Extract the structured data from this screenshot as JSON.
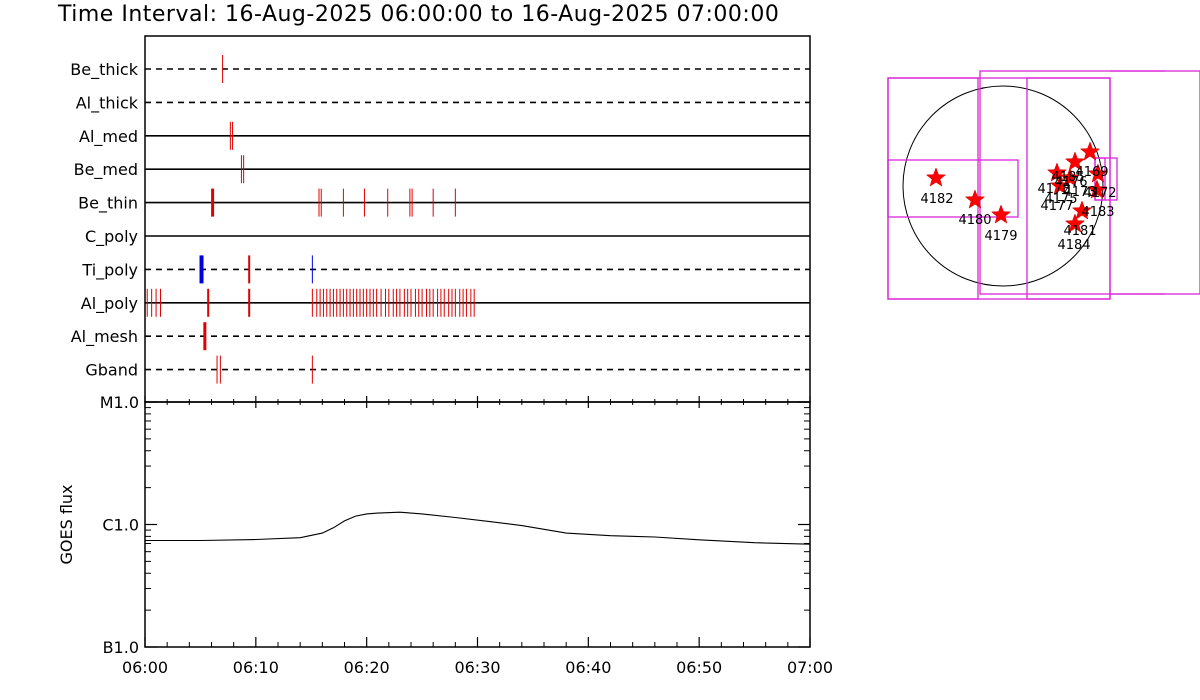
{
  "header": {
    "title": "Time Interval: 16-Aug-2025 06:00:00 to 16-Aug-2025 07:00:00"
  },
  "colors": {
    "event_red": "#e00000",
    "event_blue": "#0000dd",
    "fov_magenta": "#d926d9",
    "star_red": "#ff0000"
  },
  "chart_data": [
    {
      "type": "timeline",
      "x_range": [
        "06:00",
        "07:00"
      ],
      "x_unit": "minutes after 06:00",
      "rows": [
        {
          "name": "Be_thick",
          "style": "dashed",
          "events": [
            {
              "t": [
                7.0
              ],
              "color": "red",
              "w": 1
            }
          ]
        },
        {
          "name": "Al_thick",
          "style": "dashed",
          "events": []
        },
        {
          "name": "Al_med",
          "style": "solid",
          "events": [
            {
              "t": [
                7.7,
                7.9
              ],
              "color": "red",
              "w": 1
            }
          ]
        },
        {
          "name": "Be_med",
          "style": "solid",
          "events": [
            {
              "t": [
                8.7,
                8.9
              ],
              "color": "red",
              "w": 1
            }
          ]
        },
        {
          "name": "Be_thin",
          "style": "solid",
          "events": [
            {
              "t": [
                6.1
              ],
              "color": "red",
              "w": 3
            },
            {
              "t": [
                15.7,
                15.9,
                17.9,
                19.8,
                21.9,
                23.9,
                24.1,
                26.0,
                28.0
              ],
              "color": "red",
              "w": 1
            }
          ]
        },
        {
          "name": "C_poly",
          "style": "solid",
          "events": []
        },
        {
          "name": "Ti_poly",
          "style": "dashed",
          "events": [
            {
              "t": [
                5.1
              ],
              "color": "blue",
              "w": 4
            },
            {
              "t": [
                9.4
              ],
              "color": "red",
              "w": 2
            },
            {
              "t": [
                15.1
              ],
              "color": "blue",
              "w": 1
            }
          ]
        },
        {
          "name": "Al_poly",
          "style": "solid",
          "events": [
            {
              "t": [
                0.2,
                0.6,
                1.0,
                1.4
              ],
              "color": "red",
              "w": 1
            },
            {
              "t": [
                5.7,
                9.4
              ],
              "color": "red",
              "w": 2
            },
            {
              "t": [
                15.1,
                15.5,
                15.8,
                16.1,
                16.4,
                16.7,
                17.0,
                17.3,
                17.6,
                17.9,
                18.2,
                18.5,
                18.8,
                19.1,
                19.4,
                19.7,
                20.0,
                20.3,
                20.6,
                20.9,
                21.3,
                21.7,
                22.0,
                22.4,
                22.7,
                23.0,
                23.4,
                23.7,
                24.0,
                24.4,
                24.7,
                25.0,
                25.4,
                25.7,
                26.0,
                26.4,
                26.7,
                27.0,
                27.4,
                27.7,
                28.0,
                28.4,
                28.7,
                29.0,
                29.4,
                29.7
              ],
              "color": "red",
              "w": 1
            }
          ]
        },
        {
          "name": "Al_mesh",
          "style": "dashed",
          "events": [
            {
              "t": [
                5.4
              ],
              "color": "red",
              "w": 3
            }
          ]
        },
        {
          "name": "Gband",
          "style": "dashed",
          "events": [
            {
              "t": [
                6.5,
                6.8
              ],
              "color": "red",
              "w": 1
            },
            {
              "t": [
                15.1
              ],
              "color": "red",
              "w": 1
            }
          ]
        }
      ]
    },
    {
      "type": "line",
      "ylabel": "GOES flux",
      "xlabel": "",
      "yscale": "log",
      "ylim": [
        "B1.0",
        "M1.0"
      ],
      "ytick_labels": [
        "M1.0",
        "C1.0",
        "B1.0"
      ],
      "xtick_labels": [
        "06:00",
        "06:10",
        "06:20",
        "06:30",
        "06:40",
        "06:50",
        "07:00"
      ],
      "series": [
        {
          "x": [
            0,
            5,
            10,
            14,
            16,
            17,
            18,
            19,
            20,
            21,
            23,
            25,
            28,
            31,
            34,
            38,
            42,
            46,
            50,
            55,
            60
          ],
          "y_flux_Wm2": [
            7.4e-07,
            7.4e-07,
            7.55e-07,
            7.8e-07,
            8.5e-07,
            9.4e-07,
            1.07e-06,
            1.17e-06,
            1.22e-06,
            1.24e-06,
            1.26e-06,
            1.22e-06,
            1.14e-06,
            1.06e-06,
            9.8e-07,
            8.5e-07,
            8.1e-07,
            7.9e-07,
            7.5e-07,
            7.1e-07,
            6.9e-07
          ]
        }
      ]
    }
  ],
  "fov_map": {
    "regions": [
      {
        "label": "4182",
        "pos": "west-center"
      },
      {
        "label": "4180",
        "pos": "center"
      },
      {
        "label": "4179",
        "pos": "center-south"
      },
      {
        "label": "4181",
        "pos": "east-south"
      },
      {
        "label": "4184",
        "pos": "east-south"
      },
      {
        "label": "4183",
        "pos": "east-limb"
      },
      {
        "label": "4172",
        "pos": "east-limb"
      },
      {
        "label": "4178",
        "pos": "east-north"
      },
      {
        "label": "4177",
        "pos": "east-north"
      },
      {
        "label": "4175",
        "pos": "east-north"
      },
      {
        "label": "4176",
        "pos": "east-north"
      },
      {
        "label": "4185",
        "pos": "east-north"
      },
      {
        "label": "4169",
        "pos": "east-north"
      },
      {
        "label": "4173",
        "pos": "east-north"
      }
    ]
  }
}
